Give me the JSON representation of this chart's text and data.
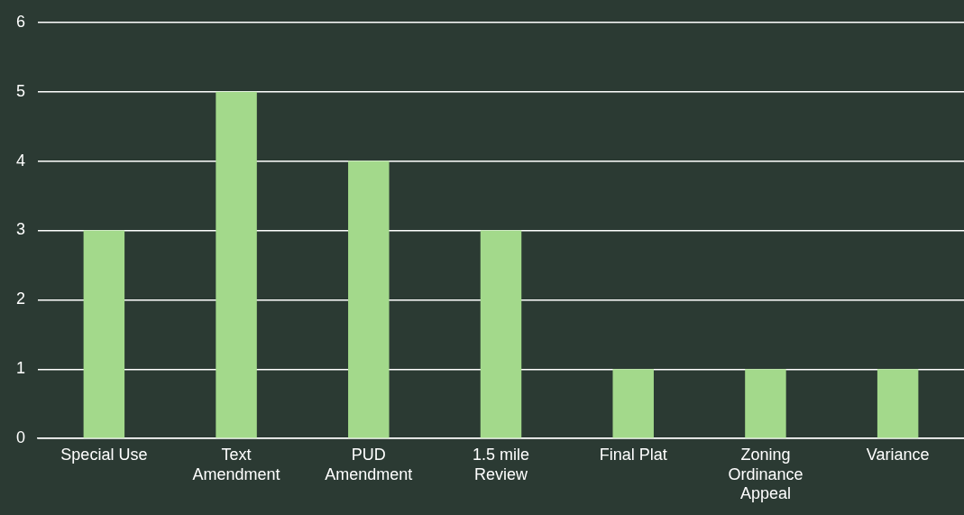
{
  "chart_data": {
    "type": "bar",
    "categories": [
      "Special Use",
      "Text Amendment",
      "PUD Amendment",
      "1.5 mile Review",
      "Final Plat",
      "Zoning Ordinance Appeal",
      "Variance"
    ],
    "values": [
      3,
      5,
      4,
      3,
      1,
      1,
      1
    ],
    "color": "#a3d98b",
    "ylim": [
      0,
      6
    ],
    "yticks": [
      0,
      1,
      2,
      3,
      4,
      5,
      6
    ],
    "grid": "y",
    "legend": false
  }
}
